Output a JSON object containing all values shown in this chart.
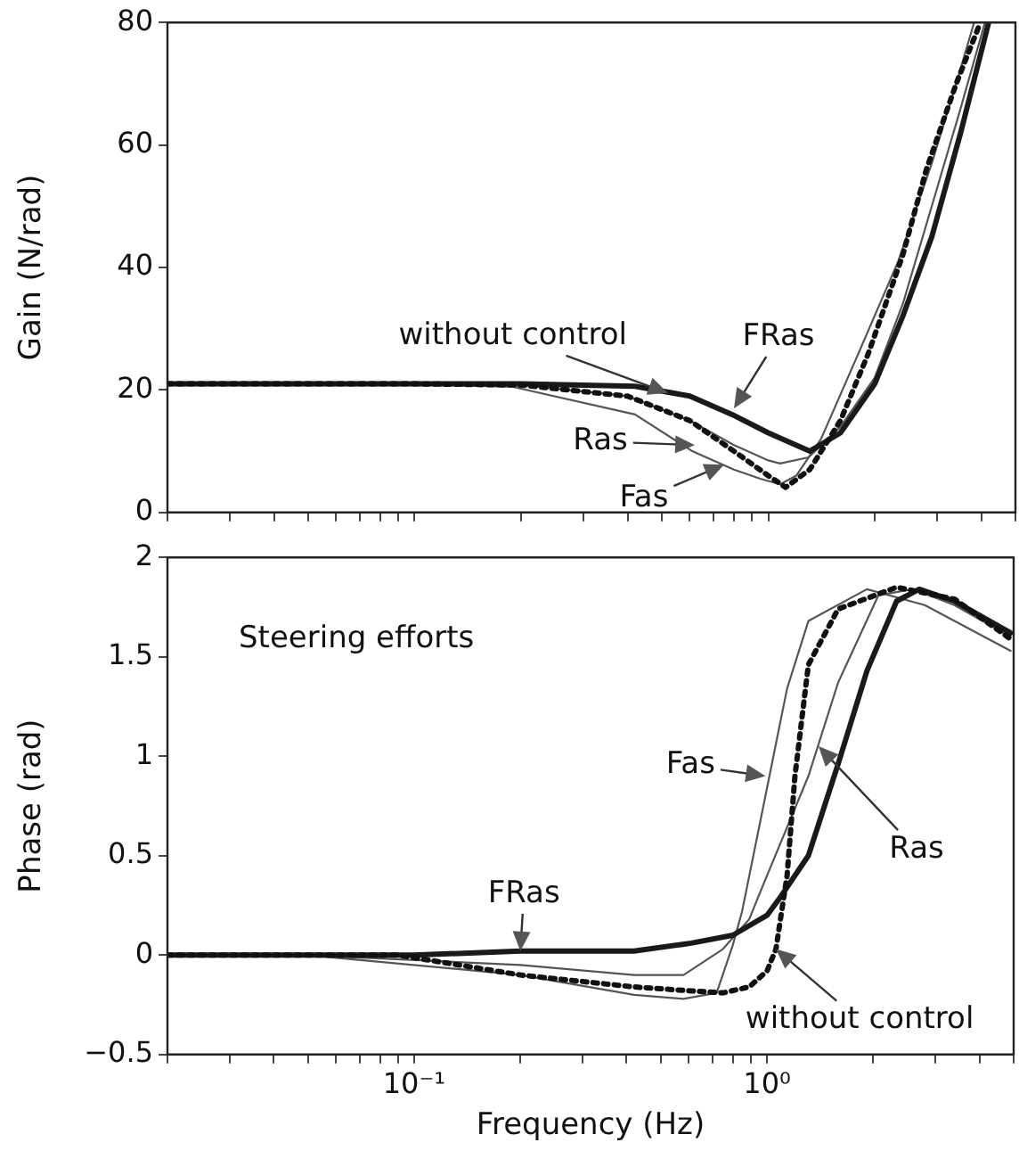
{
  "chart_data": [
    {
      "type": "line",
      "ylabel": "Gain (N/rad)",
      "log": "x",
      "grid": false,
      "legend": false,
      "marker": "none",
      "tick_labels": "y",
      "xlim": [
        0.02,
        5
      ],
      "xticks": [
        {
          "value": 0.02,
          "label": null
        },
        {
          "value": 0.03,
          "label": null
        },
        {
          "value": 0.04,
          "label": null
        },
        {
          "value": 0.05,
          "label": null
        },
        {
          "value": 0.06,
          "label": null
        },
        {
          "value": 0.07,
          "label": null
        },
        {
          "value": 0.08,
          "label": null
        },
        {
          "value": 0.09,
          "label": null
        },
        {
          "value": 0.1,
          "label": null
        },
        {
          "value": 0.2,
          "label": null
        },
        {
          "value": 0.3,
          "label": null
        },
        {
          "value": 0.4,
          "label": null
        },
        {
          "value": 0.5,
          "label": null
        },
        {
          "value": 0.6,
          "label": null
        },
        {
          "value": 0.7,
          "label": null
        },
        {
          "value": 0.8,
          "label": null
        },
        {
          "value": 0.9,
          "label": null
        },
        {
          "value": 1,
          "label": null
        },
        {
          "value": 2,
          "label": null
        },
        {
          "value": 3,
          "label": null
        },
        {
          "value": 4,
          "label": null
        },
        {
          "value": 5,
          "label": null
        }
      ],
      "ylim": [
        0,
        80
      ],
      "yticks": [
        0,
        20,
        40,
        60,
        80
      ],
      "series": [
        {
          "color": "#111111",
          "line_style": "dotted",
          "x": [
            0.02,
            0.1,
            0.2,
            0.4,
            0.6,
            0.8,
            1.0,
            1.12,
            1.31,
            1.6,
            1.92,
            2.4,
            2.8,
            3.4,
            3.98
          ],
          "values": [
            21,
            21,
            20.8,
            19,
            15,
            10,
            6,
            4.1,
            7,
            15,
            26,
            42,
            56,
            70,
            80
          ]
        },
        {
          "color": "#1a1a1a",
          "line_style": "solid",
          "x": [
            0.02,
            0.1,
            0.2,
            0.42,
            0.6,
            0.79,
            1.0,
            1.31,
            1.6,
            2.0,
            2.4,
            2.9,
            3.5,
            4.2
          ],
          "values": [
            21,
            21,
            21,
            20.6,
            19,
            16,
            13,
            10,
            13,
            21,
            32,
            45,
            62,
            80
          ]
        },
        {
          "color": "#555555",
          "line_style": "solid",
          "x": [
            0.02,
            0.1,
            0.2,
            0.4,
            0.6,
            0.8,
            1.0,
            1.08,
            1.3,
            1.6,
            2.0,
            2.4,
            2.9,
            3.5,
            4.1
          ],
          "values": [
            21,
            21,
            20.8,
            19,
            15,
            11,
            8.5,
            8,
            9,
            14,
            22,
            34,
            50,
            66,
            80
          ]
        },
        {
          "color": "#555555",
          "line_style": "solid",
          "x": [
            0.02,
            0.1,
            0.19,
            0.42,
            0.61,
            0.8,
            0.95,
            1.08,
            1.2,
            1.41,
            1.8,
            2.33,
            2.9,
            3.4,
            3.82
          ],
          "values": [
            21,
            21,
            20.5,
            16,
            10,
            7,
            5.5,
            4.6,
            6,
            12,
            26,
            41,
            57,
            70,
            80
          ]
        }
      ],
      "annotations": [
        {
          "text": "without control",
          "x": 0.52,
          "y": 19.5
        },
        {
          "text": "FRas",
          "x": 0.8,
          "y": 17
        },
        {
          "text": "Ras",
          "x": 0.62,
          "y": 11
        },
        {
          "text": "Fas",
          "x": 0.75,
          "y": 7.8
        }
      ]
    },
    {
      "type": "line",
      "ylabel": "Phase (rad)",
      "xlabel": "Frequency (Hz)",
      "log": "x",
      "grid": false,
      "legend": false,
      "marker": "none",
      "xlim": [
        0.02,
        5
      ],
      "xticks": [
        {
          "value": 0.02,
          "label": null
        },
        {
          "value": 0.03,
          "label": null
        },
        {
          "value": 0.04,
          "label": null
        },
        {
          "value": 0.05,
          "label": null
        },
        {
          "value": 0.06,
          "label": null
        },
        {
          "value": 0.07,
          "label": null
        },
        {
          "value": 0.08,
          "label": null
        },
        {
          "value": 0.09,
          "label": null
        },
        {
          "value": 0.1,
          "label": "10⁻¹"
        },
        {
          "value": 0.2,
          "label": null
        },
        {
          "value": 0.3,
          "label": null
        },
        {
          "value": 0.4,
          "label": null
        },
        {
          "value": 0.5,
          "label": null
        },
        {
          "value": 0.6,
          "label": null
        },
        {
          "value": 0.7,
          "label": null
        },
        {
          "value": 0.8,
          "label": null
        },
        {
          "value": 0.9,
          "label": null
        },
        {
          "value": 1,
          "label": "10⁰"
        },
        {
          "value": 2,
          "label": null
        },
        {
          "value": 3,
          "label": null
        },
        {
          "value": 4,
          "label": null
        },
        {
          "value": 5,
          "label": null
        }
      ],
      "ylim": [
        -0.5,
        2
      ],
      "yticks": [
        {
          "value": -0.5,
          "label": "−0.5"
        },
        0,
        0.5,
        1,
        1.5,
        2
      ],
      "series": [
        {
          "color": "#111111",
          "line_style": "dotted",
          "x": [
            0.02,
            0.09,
            0.2,
            0.42,
            0.61,
            0.75,
            0.89,
            1.0,
            1.06,
            1.14,
            1.2,
            1.31,
            1.59,
            2.33,
            3.4,
            4.9
          ],
          "values": [
            0,
            0,
            -0.1,
            -0.16,
            -0.18,
            -0.19,
            -0.16,
            -0.08,
            0.03,
            0.4,
            0.9,
            1.46,
            1.74,
            1.85,
            1.79,
            1.59
          ]
        },
        {
          "color": "#1a1a1a",
          "line_style": "solid",
          "x": [
            0.02,
            0.1,
            0.2,
            0.42,
            0.61,
            0.8,
            1.0,
            1.08,
            1.31,
            1.59,
            1.92,
            2.33,
            2.7,
            3.4,
            4.9
          ],
          "values": [
            0,
            0,
            0.02,
            0.02,
            0.06,
            0.1,
            0.2,
            0.28,
            0.5,
            0.96,
            1.43,
            1.78,
            1.84,
            1.78,
            1.62
          ]
        },
        {
          "color": "#555555",
          "line_style": "solid",
          "x": [
            0.02,
            0.05,
            0.2,
            0.42,
            0.58,
            0.75,
            0.89,
            1.0,
            1.31,
            1.59,
            2.07,
            2.6,
            3.4,
            4.9
          ],
          "values": [
            0,
            0,
            -0.05,
            -0.1,
            -0.1,
            0.03,
            0.18,
            0.4,
            0.9,
            1.37,
            1.81,
            1.84,
            1.76,
            1.6
          ]
        },
        {
          "color": "#555555",
          "line_style": "solid",
          "x": [
            0.02,
            0.05,
            0.2,
            0.42,
            0.58,
            0.72,
            0.8,
            0.85,
            1.0,
            1.14,
            1.31,
            1.92,
            2.8,
            4.9
          ],
          "values": [
            0,
            0,
            -0.1,
            -0.2,
            -0.22,
            -0.19,
            0.05,
            0.22,
            0.84,
            1.34,
            1.68,
            1.84,
            1.76,
            1.53
          ]
        }
      ],
      "annotations": [
        "Steering efforts",
        {
          "text": "FRas",
          "x": 0.2,
          "y": 0.02
        },
        {
          "text": "Fas",
          "x": 0.99,
          "y": 0.9
        },
        {
          "text": "Ras",
          "x": 1.4,
          "y": 1.05
        },
        {
          "text": "without control",
          "x": 1.06,
          "y": 0.03
        }
      ]
    }
  ]
}
